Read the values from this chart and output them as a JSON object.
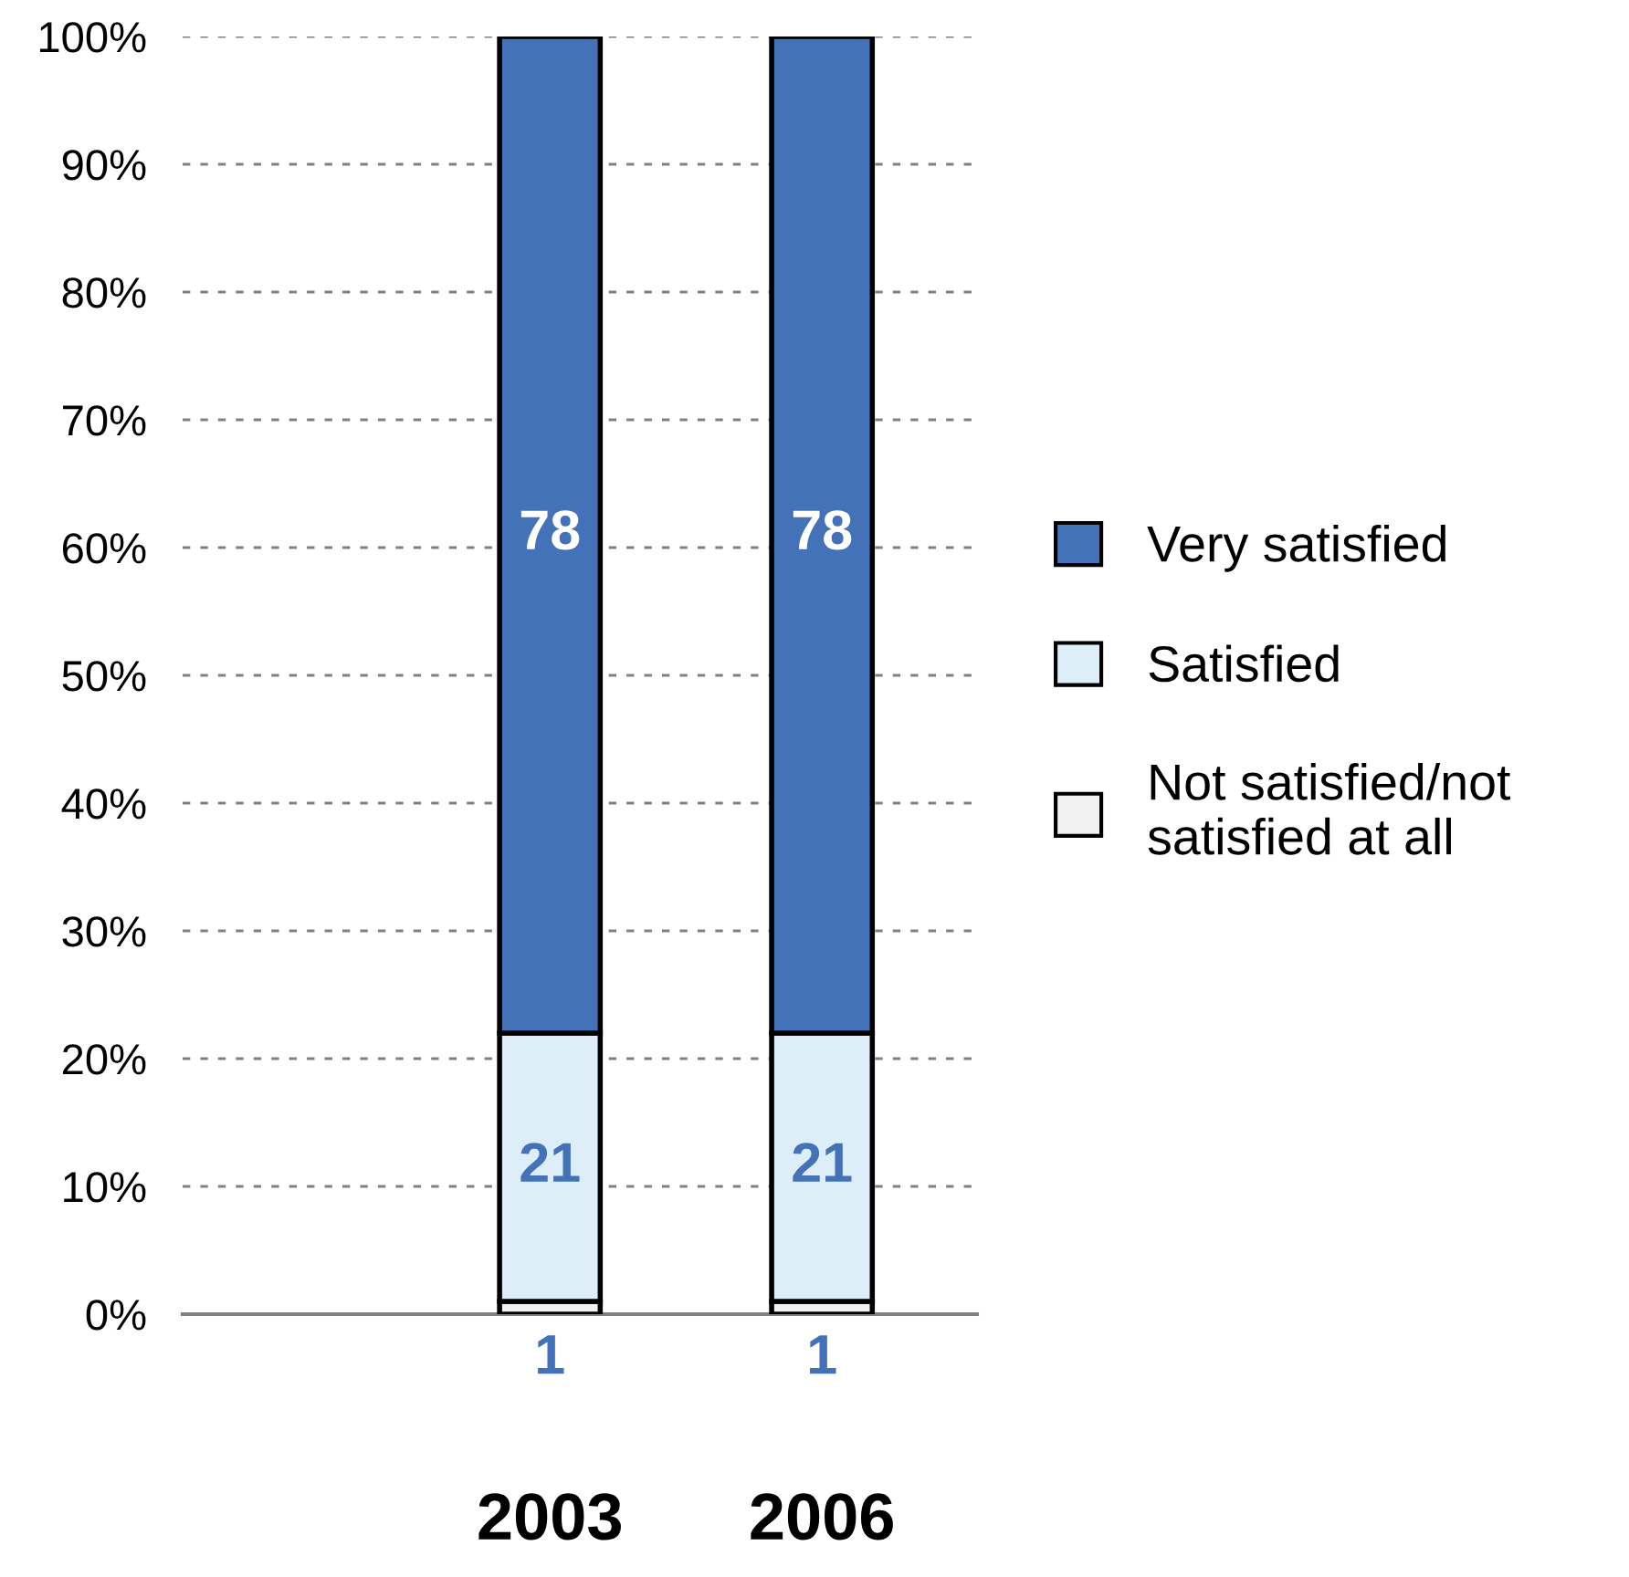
{
  "chart_data": {
    "type": "bar",
    "stacked": true,
    "categories": [
      "2003",
      "2006"
    ],
    "series": [
      {
        "name": "Not satisfied/not satisfied at all",
        "color": "#f2f2f2",
        "values": [
          1,
          1
        ]
      },
      {
        "name": "Satisfied",
        "color": "#ddeef8",
        "values": [
          21,
          21
        ]
      },
      {
        "name": "Very satisfied",
        "color": "#4472b8",
        "values": [
          78,
          78
        ]
      }
    ],
    "ylim": [
      0,
      100
    ],
    "yticks": [
      {
        "value": 0,
        "label": "0%"
      },
      {
        "value": 10,
        "label": "10%"
      },
      {
        "value": 20,
        "label": "20%"
      },
      {
        "value": 30,
        "label": "30%"
      },
      {
        "value": 40,
        "label": "40%"
      },
      {
        "value": 50,
        "label": "50%"
      },
      {
        "value": 60,
        "label": "60%"
      },
      {
        "value": 70,
        "label": "70%"
      },
      {
        "value": 80,
        "label": "80%"
      },
      {
        "value": 90,
        "label": "90%"
      },
      {
        "value": 100,
        "label": "100%"
      }
    ],
    "grid": "y",
    "legend": "right",
    "data_labels": true
  }
}
